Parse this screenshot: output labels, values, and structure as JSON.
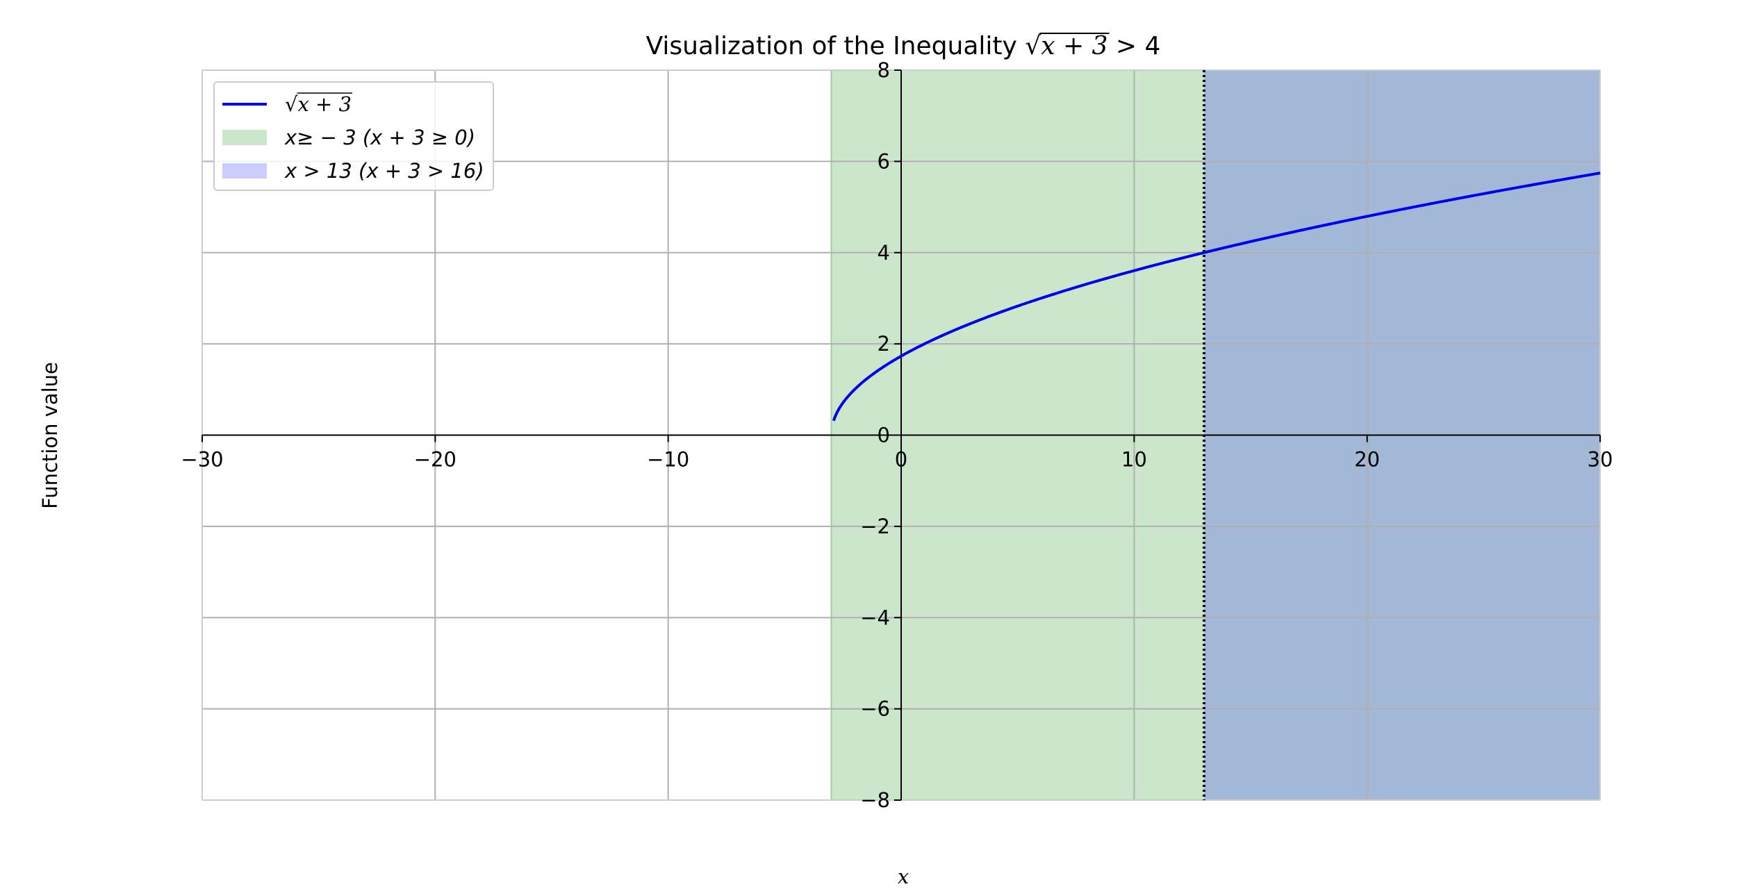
{
  "chart_data": {
    "type": "line",
    "title": "Visualization of the Inequality √x + 3 > 4",
    "title_parts": {
      "prefix": "Visualization of the Inequality ",
      "radicand": "x + 3",
      "suffix": " > 4"
    },
    "xlabel": "x",
    "ylabel": "Function value",
    "xlim": [
      -30,
      30
    ],
    "ylim": [
      -8,
      8
    ],
    "x_ticks": [
      -30,
      -20,
      -10,
      0,
      10,
      20,
      30
    ],
    "x_tick_labels": [
      "−30",
      "−20",
      "−10",
      "0",
      "10",
      "20",
      "30"
    ],
    "y_ticks": [
      -8,
      -6,
      -4,
      -2,
      0,
      2,
      4,
      6,
      8
    ],
    "y_tick_labels": [
      "−8",
      "−6",
      "−4",
      "−2",
      "0",
      "2",
      "4",
      "6",
      "8"
    ],
    "grid": true,
    "legend_position": "top-left",
    "series": [
      {
        "name": "√x + 3",
        "function": "sqrt(x + 3)",
        "domain": [
          -2.9,
          30
        ],
        "color": "#0000ee"
      }
    ],
    "regions": [
      {
        "name": "x≥ − 3 (x + 3 ≥ 0)",
        "x_range": [
          -3,
          30
        ],
        "color": "#008000",
        "alpha": 0.2
      },
      {
        "name": "x > 13 (x + 3 > 16)",
        "x_range": [
          13,
          30
        ],
        "color": "#0000ff",
        "alpha": 0.2
      }
    ],
    "vertical_lines": [
      {
        "x": 13,
        "style": "dotted",
        "color": "#000000"
      }
    ],
    "legend": [
      {
        "kind": "line",
        "label_radicand": "x + 3",
        "color": "#0000ee"
      },
      {
        "kind": "patch",
        "label": "x≥ − 3 (x + 3 ≥ 0)",
        "color": "#008000",
        "alpha": 0.2
      },
      {
        "kind": "patch",
        "label": "x > 13 (x + 3 > 16)",
        "color": "#0000ff",
        "alpha": 0.2
      }
    ]
  }
}
